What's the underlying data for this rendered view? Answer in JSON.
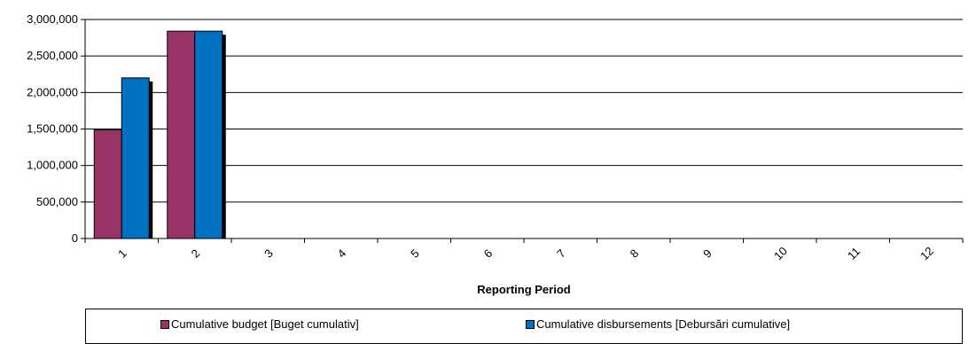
{
  "chart_data": {
    "type": "bar",
    "categories": [
      "1",
      "2",
      "3",
      "4",
      "5",
      "6",
      "7",
      "8",
      "9",
      "10",
      "11",
      "12"
    ],
    "series": [
      {
        "name": "Cumulative budget [Buget cumulativ]",
        "color": "#993366",
        "values": [
          1490000,
          2840000,
          0,
          0,
          0,
          0,
          0,
          0,
          0,
          0,
          0,
          0
        ]
      },
      {
        "name": "Cumulative disbursements [Debursări cumulative]",
        "color": "#0070C0",
        "values": [
          2200000,
          2840000,
          0,
          0,
          0,
          0,
          0,
          0,
          0,
          0,
          0,
          0
        ]
      }
    ],
    "ylim": [
      0,
      3000000
    ],
    "yticks": [
      "0",
      "500,000",
      "1,000,000",
      "1,500,000",
      "2,000,000",
      "2,500,000",
      "3,000,000"
    ],
    "xlabel": "Reporting Period",
    "ylabel": "",
    "grid": true,
    "legend_position": "bottom"
  }
}
